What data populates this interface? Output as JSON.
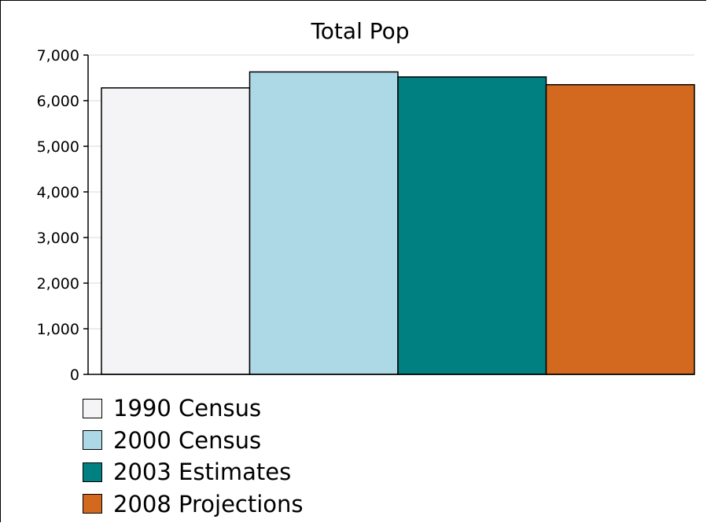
{
  "chart_data": {
    "type": "bar",
    "title": "Total Pop",
    "xlabel": "",
    "ylabel": "",
    "ylim": [
      0,
      7000
    ],
    "y_ticks": [
      0,
      1000,
      2000,
      3000,
      4000,
      5000,
      6000,
      7000
    ],
    "y_tick_labels": [
      "0",
      "1,000",
      "2,000",
      "3,000",
      "4,000",
      "5,000",
      "6,000",
      "7,000"
    ],
    "grid": true,
    "legend_position": "bottom",
    "series": [
      {
        "name": "1990 Census",
        "value": 6280,
        "color": "#f4f4f6"
      },
      {
        "name": "2000 Census",
        "value": 6630,
        "color": "#add8e6"
      },
      {
        "name": "2003 Estimates",
        "value": 6520,
        "color": "#008080"
      },
      {
        "name": "2008 Projections",
        "value": 6350,
        "color": "#d2691e"
      }
    ]
  }
}
